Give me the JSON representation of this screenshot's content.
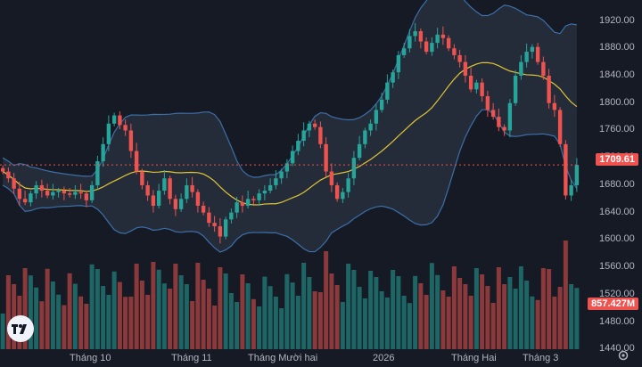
{
  "colors": {
    "background": "#161a25",
    "up": "#26a69a",
    "down": "#ef5350",
    "bollinger_fill": "#2a3340",
    "bollinger_band": "#3d6fa8",
    "ma_line": "#e0c437",
    "axis_text": "#b2b5be"
  },
  "logo_icon": "tradingview-logo-icon",
  "settings_icon": "gear-icon",
  "price_axis": {
    "ticks": [
      "1920.00",
      "1880.00",
      "1840.00",
      "1800.00",
      "1760.00",
      "1720.00",
      "1680.00",
      "1640.00",
      "1600.00",
      "1560.00",
      "1520.00",
      "1480.00",
      "1440.00"
    ],
    "last_price": "1709.61",
    "last_volume": "857.427M"
  },
  "time_axis": {
    "labels": [
      "Tháng 10",
      "Tháng 11",
      "Tháng Mười hai",
      "2026",
      "Tháng Hai",
      "Tháng 3"
    ]
  },
  "chart_data": {
    "type": "candlestick",
    "series": [
      {
        "name": "price",
        "ohlc_close": [
          1700,
          1690,
          1675,
          1660,
          1655,
          1668,
          1680,
          1672,
          1665,
          1670,
          1672,
          1668,
          1666,
          1670,
          1668,
          1658,
          1680,
          1715,
          1740,
          1770,
          1782,
          1768,
          1760,
          1730,
          1700,
          1680,
          1665,
          1650,
          1672,
          1690,
          1660,
          1645,
          1660,
          1680,
          1670,
          1650,
          1640,
          1625,
          1620,
          1605,
          1630,
          1640,
          1655,
          1650,
          1660,
          1658,
          1668,
          1672,
          1680,
          1690,
          1700,
          1712,
          1730,
          1745,
          1760,
          1770,
          1765,
          1740,
          1700,
          1680,
          1660,
          1670,
          1690,
          1720,
          1740,
          1760,
          1770,
          1790,
          1805,
          1830,
          1845,
          1870,
          1880,
          1898,
          1905,
          1890,
          1875,
          1888,
          1900,
          1895,
          1880,
          1870,
          1860,
          1840,
          1820,
          1830,
          1810,
          1790,
          1780,
          1765,
          1760,
          1800,
          1840,
          1860,
          1875,
          1882,
          1860,
          1840,
          1800,
          1790,
          1740,
          1665,
          1680,
          1709.61
        ]
      }
    ],
    "bollinger": {
      "period": 20,
      "stddev": 2
    },
    "moving_average": {
      "period": 20
    }
  }
}
